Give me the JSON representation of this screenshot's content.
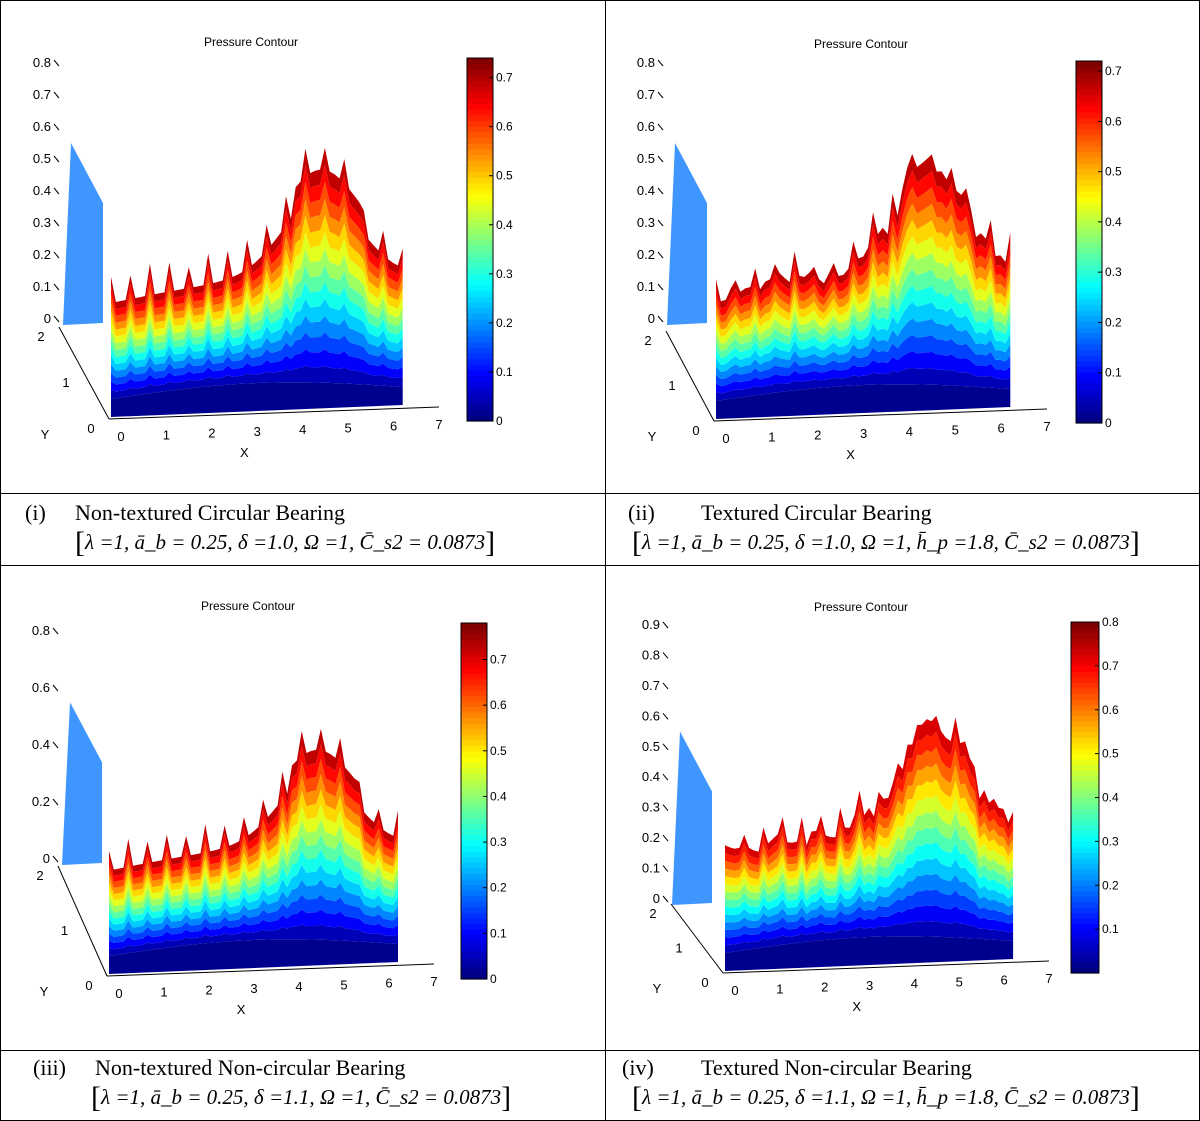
{
  "chart_data": [
    {
      "type": "surface",
      "title": "Pressure Contour",
      "xlabel": "X",
      "ylabel": "Y",
      "x_ticks": [
        "0",
        "1",
        "2",
        "3",
        "4",
        "5",
        "6",
        "7"
      ],
      "y_ticks": [
        "0",
        "1",
        "2"
      ],
      "z_ticks": [
        "0",
        "0.1",
        "0.2",
        "0.3",
        "0.4",
        "0.5",
        "0.6",
        "0.7",
        "0.8"
      ],
      "colorbar_ticks": [
        "0",
        "0.1",
        "0.2",
        "0.3",
        "0.4",
        "0.5",
        "0.6",
        "0.7"
      ],
      "colorbar_range": [
        0,
        0.74
      ],
      "zlim": [
        0,
        0.8
      ],
      "xlim": [
        0,
        7
      ],
      "ylim": [
        0,
        2
      ],
      "colormap": "jet",
      "peak_z": 0.74,
      "caption_num": "(i)",
      "caption_title": "Non-textured  Circular Bearing",
      "caption_params": "λ =1,  ā_b = 0.25, δ =1.0,  Ω =1,   C̄_s2 = 0.0873"
    },
    {
      "type": "surface",
      "title": "Pressure Contour",
      "xlabel": "X",
      "ylabel": "Y",
      "x_ticks": [
        "0",
        "1",
        "2",
        "3",
        "4",
        "5",
        "6",
        "7"
      ],
      "y_ticks": [
        "0",
        "1",
        "2"
      ],
      "z_ticks": [
        "0",
        "0.1",
        "0.2",
        "0.3",
        "0.4",
        "0.5",
        "0.6",
        "0.7",
        "0.8"
      ],
      "colorbar_ticks": [
        "0",
        "0.1",
        "0.2",
        "0.3",
        "0.4",
        "0.5",
        "0.6",
        "0.7"
      ],
      "colorbar_range": [
        0,
        0.72
      ],
      "zlim": [
        0,
        0.8
      ],
      "xlim": [
        0,
        7
      ],
      "ylim": [
        0,
        2
      ],
      "colormap": "jet",
      "peak_z": 0.72,
      "caption_num": "(ii)",
      "caption_title": "Textured Circular Bearing",
      "caption_params": "λ =1,  ā_b = 0.25,   δ =1.0, Ω =1,  h̄_p =1.8,  C̄_s2 = 0.0873"
    },
    {
      "type": "surface",
      "title": "Pressure Contour",
      "xlabel": "X",
      "ylabel": "Y",
      "x_ticks": [
        "0",
        "1",
        "2",
        "3",
        "4",
        "5",
        "6",
        "7"
      ],
      "y_ticks": [
        "0",
        "1",
        "2"
      ],
      "z_ticks": [
        "0",
        "0.2",
        "0.4",
        "0.6",
        "0.8"
      ],
      "colorbar_ticks": [
        "0",
        "0.1",
        "0.2",
        "0.3",
        "0.4",
        "0.5",
        "0.6",
        "0.7"
      ],
      "colorbar_range": [
        0,
        0.78
      ],
      "zlim": [
        0,
        0.8
      ],
      "xlim": [
        0,
        7
      ],
      "ylim": [
        0,
        2
      ],
      "colormap": "jet",
      "peak_z": 0.78,
      "caption_num": "(iii)",
      "caption_title": "Non-textured Non-circular Bearing",
      "caption_params": "λ =1,  ā_b = 0.25, δ =1.1,  Ω =1,   C̄_s2 = 0.0873"
    },
    {
      "type": "surface",
      "title": "Pressure Contour",
      "xlabel": "X",
      "ylabel": "Y",
      "x_ticks": [
        "0",
        "1",
        "2",
        "3",
        "4",
        "5",
        "6",
        "7"
      ],
      "y_ticks": [
        "0",
        "1",
        "2"
      ],
      "z_ticks": [
        "0",
        "0.1",
        "0.2",
        "0.3",
        "0.4",
        "0.5",
        "0.6",
        "0.7",
        "0.8",
        "0.9"
      ],
      "colorbar_ticks": [
        "0.1",
        "0.2",
        "0.3",
        "0.4",
        "0.5",
        "0.6",
        "0.7",
        "0.8"
      ],
      "colorbar_range": [
        0,
        0.8
      ],
      "zlim": [
        0,
        0.9
      ],
      "xlim": [
        0,
        7
      ],
      "ylim": [
        0,
        2
      ],
      "colormap": "jet",
      "peak_z": 0.78,
      "caption_num": "(iv)",
      "caption_title": "Textured  Non-circular Bearing",
      "caption_params": "λ =1,  ā_b = 0.25,   δ =1.1, Ω =1,  h̄_p =1.8,  C̄_s2 = 0.0873"
    }
  ]
}
